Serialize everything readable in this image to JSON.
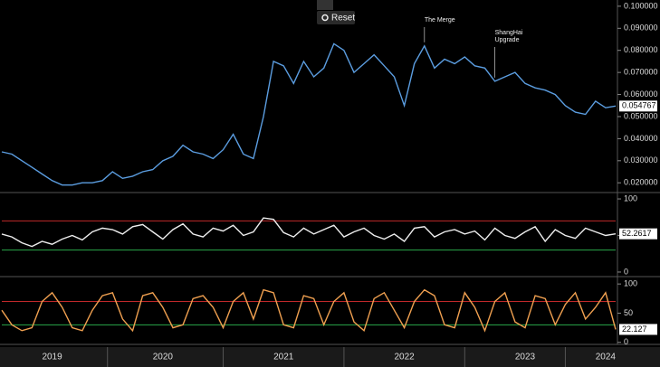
{
  "toolbar_button": "Reset",
  "chart_data": [
    {
      "type": "line",
      "series": [
        {
          "color": "#5b9de0",
          "values": [
            0.034,
            0.033,
            0.03,
            0.027,
            0.024,
            0.021,
            0.019,
            0.019,
            0.02,
            0.02,
            0.021,
            0.025,
            0.022,
            0.023,
            0.025,
            0.026,
            0.03,
            0.032,
            0.037,
            0.034,
            0.033,
            0.031,
            0.035,
            0.042,
            0.033,
            0.031,
            0.05,
            0.075,
            0.073,
            0.065,
            0.075,
            0.068,
            0.072,
            0.083,
            0.08,
            0.07,
            0.074,
            0.078,
            0.073,
            0.068,
            0.055,
            0.074,
            0.082,
            0.072,
            0.076,
            0.074,
            0.077,
            0.073,
            0.072,
            0.066,
            0.068,
            0.07,
            0.065,
            0.063,
            0.062,
            0.06,
            0.055,
            0.052,
            0.051,
            0.057,
            0.054,
            0.054767
          ]
        }
      ],
      "ylim": [
        0.016,
        0.102
      ],
      "yticks": [
        {
          "value": 0.02,
          "label": "0.020000"
        },
        {
          "value": 0.03,
          "label": "0.030000"
        },
        {
          "value": 0.04,
          "label": "0.040000"
        },
        {
          "value": 0.05,
          "label": "0.050000"
        },
        {
          "value": 0.06,
          "label": "0.060000"
        },
        {
          "value": 0.07,
          "label": "0.070000"
        },
        {
          "value": 0.08,
          "label": "0.080000"
        },
        {
          "value": 0.09,
          "label": "0.090000"
        },
        {
          "value": 0.1,
          "label": "0.100000"
        }
      ],
      "annotations": [
        {
          "text": [
            "The Merge"
          ],
          "index": 42
        },
        {
          "text": [
            "ShangHai",
            "Upgrade"
          ],
          "index": 49
        }
      ]
    },
    {
      "type": "line",
      "series": [
        {
          "color": "#eeeeee",
          "values": [
            52,
            48,
            40,
            35,
            42,
            38,
            45,
            50,
            44,
            55,
            60,
            58,
            52,
            62,
            65,
            55,
            45,
            58,
            66,
            52,
            48,
            60,
            56,
            64,
            50,
            55,
            74,
            72,
            54,
            48,
            60,
            52,
            58,
            64,
            48,
            55,
            60,
            50,
            45,
            52,
            42,
            60,
            62,
            48,
            55,
            58,
            52,
            56,
            44,
            60,
            50,
            46,
            55,
            62,
            42,
            58,
            50,
            46,
            60,
            55,
            50,
            52.2617
          ]
        }
      ],
      "ylim": [
        -5,
        105
      ],
      "yticks": [
        0,
        50,
        100
      ],
      "hlines": [
        {
          "value": 70,
          "color": "#c0282a"
        },
        {
          "value": 30,
          "color": "#2aa84a"
        }
      ]
    },
    {
      "type": "line",
      "series": [
        {
          "color": "#f0a050",
          "values": [
            55,
            30,
            20,
            25,
            70,
            85,
            60,
            25,
            20,
            55,
            80,
            85,
            40,
            20,
            80,
            85,
            60,
            25,
            30,
            75,
            80,
            60,
            25,
            70,
            85,
            40,
            90,
            85,
            30,
            25,
            80,
            75,
            30,
            70,
            85,
            35,
            20,
            75,
            85,
            55,
            25,
            70,
            90,
            80,
            30,
            25,
            85,
            60,
            20,
            70,
            85,
            35,
            25,
            80,
            75,
            30,
            65,
            85,
            40,
            60,
            85,
            22.127
          ]
        }
      ],
      "ylim": [
        -2,
        108
      ],
      "yticks": [
        0,
        50,
        100
      ],
      "hlines": [
        {
          "value": 70,
          "color": "#c0282a"
        },
        {
          "value": 30,
          "color": "#2aa84a"
        }
      ],
      "categories": [
        null,
        null,
        null,
        null,
        null,
        "2019",
        null,
        null,
        null,
        null,
        null,
        null,
        null,
        null,
        null,
        null,
        "2020",
        null,
        null,
        null,
        null,
        null,
        null,
        null,
        null,
        null,
        null,
        null,
        "2021",
        null,
        null,
        null,
        null,
        null,
        null,
        null,
        null,
        null,
        null,
        null,
        "2022",
        null,
        null,
        null,
        null,
        null,
        null,
        null,
        null,
        null,
        null,
        null,
        "2023",
        null,
        null,
        null,
        null,
        null,
        null,
        null,
        "2024",
        null
      ]
    }
  ]
}
